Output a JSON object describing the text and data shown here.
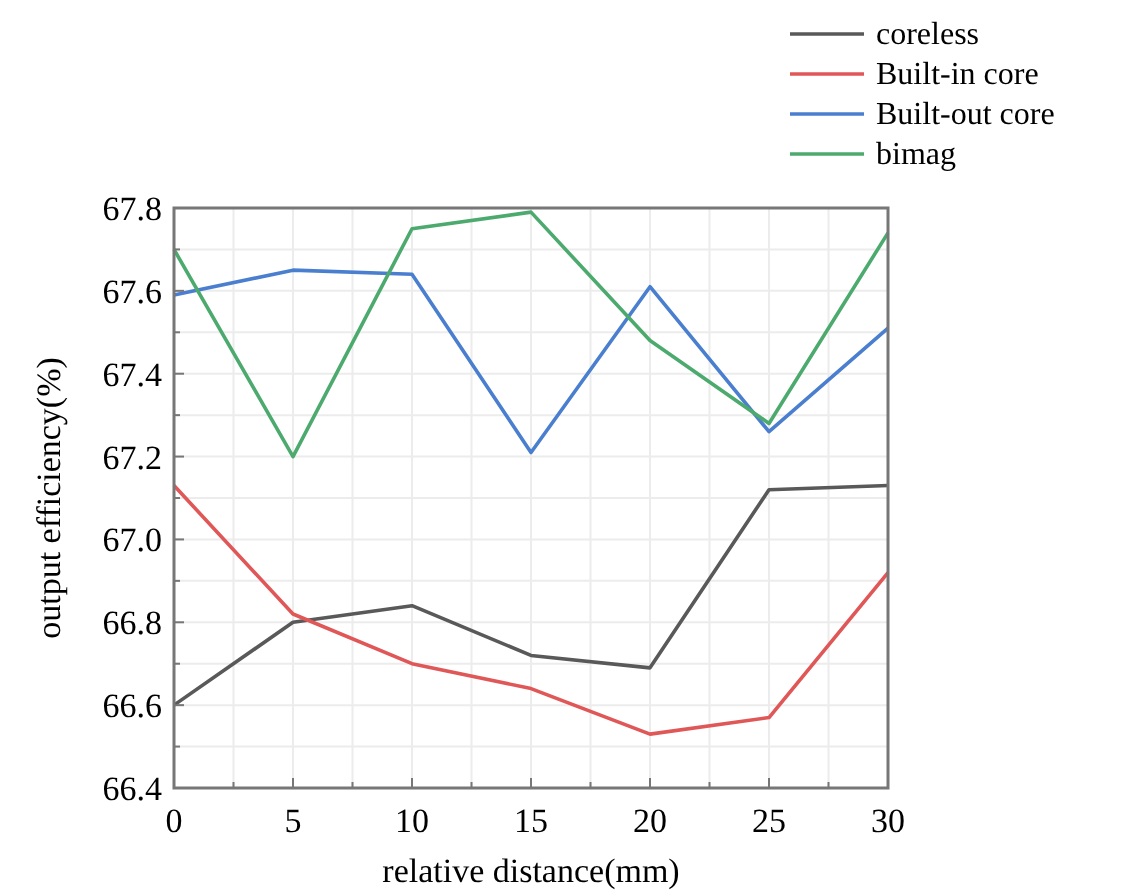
{
  "chart_data": {
    "type": "line",
    "xlabel": "relative distance(mm)",
    "ylabel": "output efficiency(%)",
    "x": [
      0,
      5,
      10,
      15,
      20,
      25,
      30
    ],
    "series": [
      {
        "name": "coreless",
        "color": "#595959",
        "values": [
          66.6,
          66.8,
          66.84,
          66.72,
          66.69,
          67.12,
          67.13
        ]
      },
      {
        "name": "Built-in core",
        "color": "#e05757",
        "values": [
          67.13,
          66.82,
          66.7,
          66.64,
          66.53,
          66.57,
          66.92
        ]
      },
      {
        "name": "Built-out core",
        "color": "#4a7fcf",
        "values": [
          67.59,
          67.65,
          67.64,
          67.21,
          67.61,
          67.26,
          67.51
        ]
      },
      {
        "name": "bimag",
        "color": "#4daa6e",
        "values": [
          67.7,
          67.2,
          67.75,
          67.79,
          67.48,
          67.28,
          67.74
        ]
      }
    ],
    "xlim": [
      0,
      30
    ],
    "xticks": [
      0,
      {
        "value": 2.5,
        "label": null
      },
      5,
      {
        "value": 7.5,
        "label": null
      },
      10,
      {
        "value": 12.5,
        "label": null
      },
      15,
      {
        "value": 17.5,
        "label": null
      },
      20,
      {
        "value": 22.5,
        "label": null
      },
      25,
      {
        "value": 27.5,
        "label": null
      },
      30
    ],
    "ylim": [
      66.4,
      67.8
    ],
    "yticks": [
      {
        "value": 66.4,
        "label": "66.4"
      },
      {
        "value": 66.5,
        "label": null
      },
      {
        "value": 66.6,
        "label": "66.6"
      },
      {
        "value": 66.7,
        "label": null
      },
      {
        "value": 66.8,
        "label": "66.8"
      },
      {
        "value": 66.9,
        "label": null
      },
      {
        "value": 67.0,
        "label": "67.0"
      },
      {
        "value": 67.1,
        "label": null
      },
      {
        "value": 67.2,
        "label": "67.2"
      },
      {
        "value": 67.3,
        "label": null
      },
      {
        "value": 67.4,
        "label": "67.4"
      },
      {
        "value": 67.5,
        "label": null
      },
      {
        "value": 67.6,
        "label": "67.6"
      },
      {
        "value": 67.7,
        "label": null
      },
      {
        "value": 67.8,
        "label": "67.8"
      }
    ],
    "grid": true,
    "legend": "top right",
    "marker": "none",
    "line_style": "solid"
  }
}
